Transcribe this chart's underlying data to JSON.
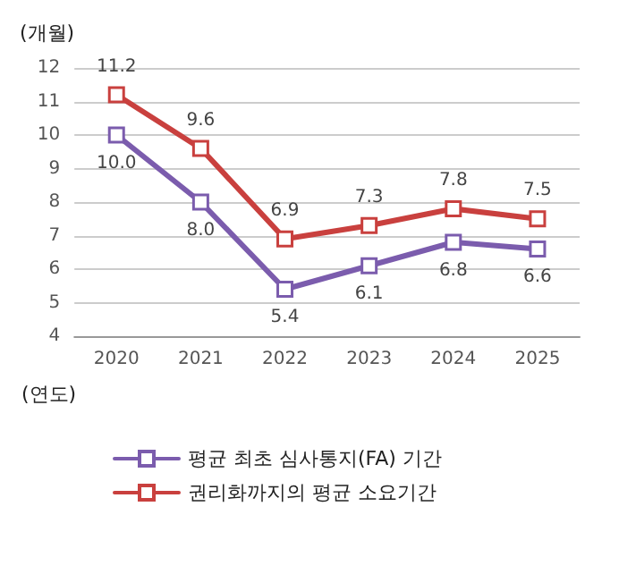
{
  "chart_data": {
    "type": "line",
    "ylabel": "(개월)",
    "xlabel": "(연도)",
    "categories": [
      "2020",
      "2021",
      "2022",
      "2023",
      "2024",
      "2025"
    ],
    "series": [
      {
        "name": "평균 최초 심사통지(FA) 기간",
        "color": "#7b5cad",
        "values": [
          10.0,
          8.0,
          5.4,
          6.1,
          6.8,
          6.6
        ],
        "value_labels": [
          "10.0",
          "8.0",
          "5.4",
          "6.1",
          "6.8",
          "6.6"
        ]
      },
      {
        "name": "권리화까지의 평균 소요기간",
        "color": "#c9403e",
        "values": [
          11.2,
          9.6,
          6.9,
          7.3,
          7.8,
          7.5
        ],
        "value_labels": [
          "11.2",
          "9.6",
          "6.9",
          "7.3",
          "7.8",
          "7.5"
        ]
      }
    ],
    "ylim": [
      4,
      12
    ],
    "yticks": [
      4,
      5,
      6,
      7,
      8,
      9,
      10,
      11,
      12
    ],
    "grid": "y",
    "legend": "bottom",
    "marker": "square",
    "line_style": "solid"
  }
}
